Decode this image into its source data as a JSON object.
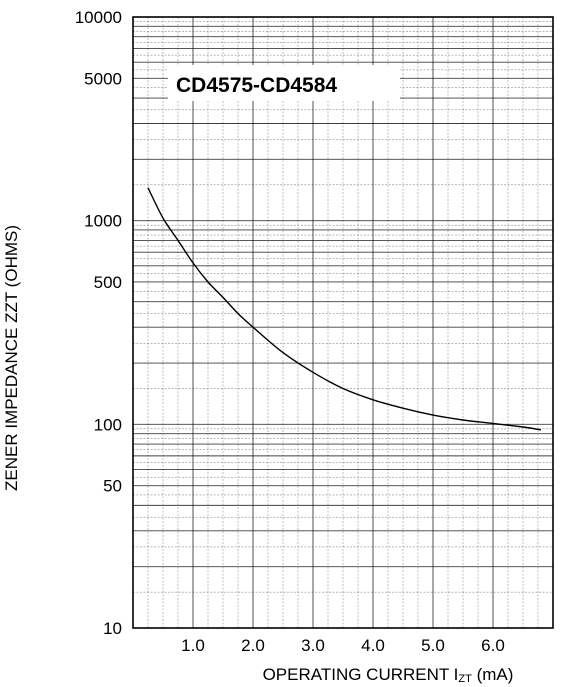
{
  "chart_data": {
    "type": "line",
    "title": "CD4575-CD4584",
    "xlabel": "OPERATING CURRENT I",
    "xlabel_subscript": "ZT",
    "xlabel_units": " (mA)",
    "ylabel": "ZENER IMPEDANCE ZZT (OHMS)",
    "x_scale": "linear",
    "y_scale": "log",
    "xlim": [
      0,
      7
    ],
    "ylim": [
      10,
      10000
    ],
    "grid": true,
    "x_ticks": [
      {
        "value": 1.0,
        "label": "1.0"
      },
      {
        "value": 2.0,
        "label": "2.0"
      },
      {
        "value": 3.0,
        "label": "3.0"
      },
      {
        "value": 4.0,
        "label": "4.0"
      },
      {
        "value": 5.0,
        "label": "5.0"
      },
      {
        "value": 6.0,
        "label": "6.0"
      }
    ],
    "y_ticks": [
      {
        "value": 10,
        "label": "10"
      },
      {
        "value": 50,
        "label": "50"
      },
      {
        "value": 100,
        "label": "100"
      },
      {
        "value": 500,
        "label": "500"
      },
      {
        "value": 1000,
        "label": "1000"
      },
      {
        "value": 5000,
        "label": "5000"
      },
      {
        "value": 10000,
        "label": "10000"
      }
    ],
    "series": [
      {
        "x": [
          0.25,
          0.5,
          0.75,
          1.0,
          1.25,
          1.5,
          1.75,
          2.0,
          2.5,
          3.0,
          3.5,
          4.0,
          4.5,
          5.0,
          5.5,
          6.0,
          6.5,
          6.8
        ],
        "y": [
          1450,
          1030,
          800,
          620,
          500,
          420,
          350,
          300,
          225,
          180,
          150,
          132,
          120,
          111,
          105,
          101,
          97,
          94
        ]
      }
    ]
  }
}
